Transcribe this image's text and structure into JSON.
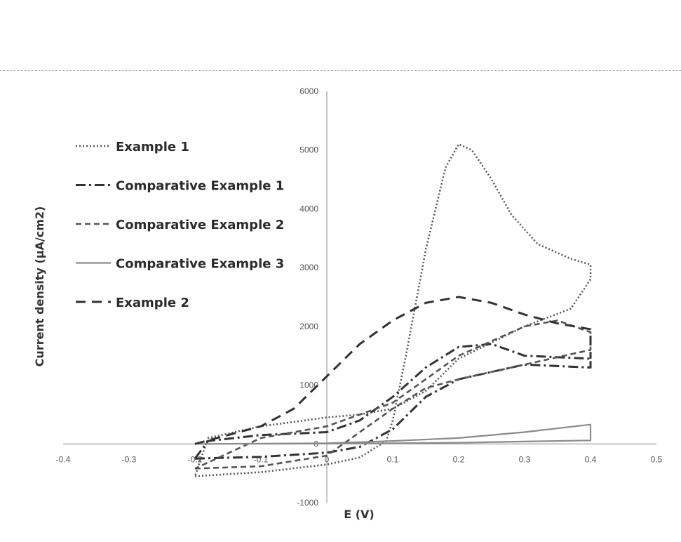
{
  "chart_data": {
    "type": "line",
    "title": "",
    "xlabel": "E (V)",
    "ylabel": "Current density (μA/cm2)",
    "xlim": [
      -0.4,
      0.5
    ],
    "ylim": [
      -1000,
      6000
    ],
    "xticks": [
      "-0.4",
      "-0.3",
      "-0.2",
      "-0.1",
      "0",
      "0.1",
      "0.2",
      "0.3",
      "0.4",
      "0.5"
    ],
    "yticks": [
      "-1000",
      "0",
      "1000",
      "2000",
      "3000",
      "4000",
      "5000",
      "6000"
    ],
    "grid": false,
    "legend_position": "top-left",
    "series": [
      {
        "name": "Example 1",
        "dash": "dotted",
        "color": "#555555",
        "points": [
          [
            -0.2,
            -550
          ],
          [
            -0.1,
            -480
          ],
          [
            0,
            -350
          ],
          [
            0.05,
            -230
          ],
          [
            0.09,
            50
          ],
          [
            0.1,
            400
          ],
          [
            0.12,
            1500
          ],
          [
            0.15,
            3300
          ],
          [
            0.18,
            4700
          ],
          [
            0.2,
            5100
          ],
          [
            0.22,
            5000
          ],
          [
            0.25,
            4500
          ],
          [
            0.28,
            3900
          ],
          [
            0.32,
            3400
          ],
          [
            0.37,
            3150
          ],
          [
            0.4,
            3050
          ],
          [
            0.4,
            2800
          ],
          [
            0.37,
            2300
          ],
          [
            0.3,
            2000
          ],
          [
            0.2,
            1450
          ],
          [
            0.15,
            900
          ],
          [
            0.1,
            600
          ],
          [
            0.05,
            500
          ],
          [
            0,
            450
          ],
          [
            -0.1,
            300
          ],
          [
            -0.18,
            100
          ],
          [
            -0.2,
            -550
          ]
        ]
      },
      {
        "name": "Comparative Example 1",
        "dash": "dash-dot",
        "color": "#333333",
        "points": [
          [
            -0.2,
            -250
          ],
          [
            -0.1,
            -220
          ],
          [
            0,
            -150
          ],
          [
            0.05,
            -50
          ],
          [
            0.1,
            250
          ],
          [
            0.15,
            800
          ],
          [
            0.2,
            1100
          ],
          [
            0.3,
            1350
          ],
          [
            0.4,
            1300
          ],
          [
            0.4,
            1450
          ],
          [
            0.3,
            1500
          ],
          [
            0.25,
            1700
          ],
          [
            0.2,
            1650
          ],
          [
            0.15,
            1300
          ],
          [
            0.1,
            800
          ],
          [
            0.05,
            400
          ],
          [
            0,
            200
          ],
          [
            -0.1,
            150
          ],
          [
            -0.18,
            50
          ],
          [
            -0.2,
            -250
          ]
        ]
      },
      {
        "name": "Comparative Example 2",
        "dash": "dash",
        "color": "#555555",
        "points": [
          [
            -0.2,
            -420
          ],
          [
            -0.1,
            -380
          ],
          [
            0,
            -200
          ],
          [
            0.05,
            200
          ],
          [
            0.1,
            600
          ],
          [
            0.15,
            950
          ],
          [
            0.2,
            1100
          ],
          [
            0.3,
            1350
          ],
          [
            0.4,
            1600
          ],
          [
            0.4,
            1900
          ],
          [
            0.35,
            2100
          ],
          [
            0.3,
            2000
          ],
          [
            0.2,
            1500
          ],
          [
            0.1,
            700
          ],
          [
            0,
            300
          ],
          [
            -0.1,
            100
          ],
          [
            -0.2,
            -420
          ]
        ]
      },
      {
        "name": "Comparative Example 3",
        "dash": "solid",
        "color": "#8a8a8a",
        "points": [
          [
            -0.2,
            0
          ],
          [
            0,
            10
          ],
          [
            0.1,
            50
          ],
          [
            0.2,
            100
          ],
          [
            0.3,
            200
          ],
          [
            0.4,
            330
          ],
          [
            0.4,
            60
          ],
          [
            0.3,
            40
          ],
          [
            0.2,
            20
          ],
          [
            0.1,
            10
          ],
          [
            0,
            5
          ],
          [
            -0.2,
            0
          ]
        ]
      },
      {
        "name": "Example 2",
        "dash": "long-dash",
        "color": "#333333",
        "points": [
          [
            -0.2,
            0
          ],
          [
            -0.15,
            150
          ],
          [
            -0.1,
            300
          ],
          [
            -0.05,
            600
          ],
          [
            0,
            1150
          ],
          [
            0.05,
            1700
          ],
          [
            0.1,
            2100
          ],
          [
            0.15,
            2400
          ],
          [
            0.2,
            2500
          ],
          [
            0.25,
            2400
          ],
          [
            0.3,
            2200
          ],
          [
            0.35,
            2050
          ],
          [
            0.4,
            1950
          ],
          [
            0.4,
            1450
          ]
        ]
      }
    ]
  }
}
